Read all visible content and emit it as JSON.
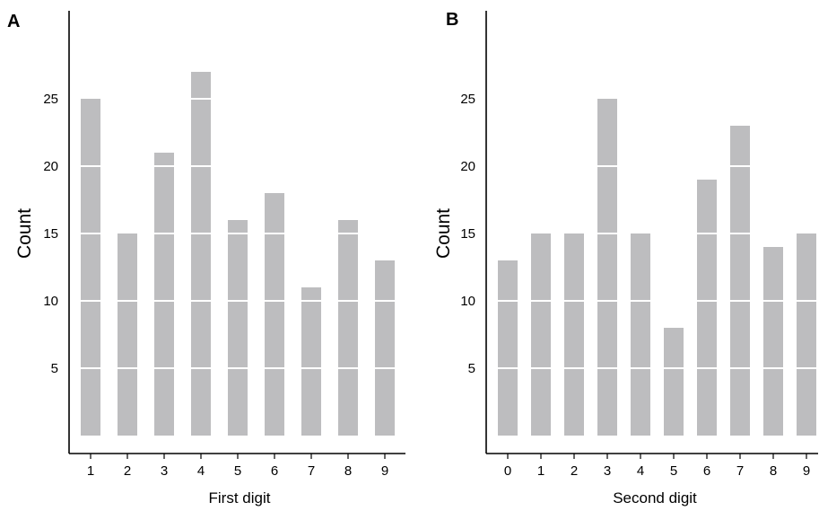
{
  "chart_data": [
    {
      "panel_label": "A",
      "type": "bar",
      "categories": [
        "1",
        "2",
        "3",
        "4",
        "5",
        "6",
        "7",
        "8",
        "9"
      ],
      "values": [
        25,
        15,
        21,
        27,
        16,
        18,
        11,
        16,
        13
      ],
      "xlabel": "First digit",
      "ylabel": "Count",
      "yticks": [
        5,
        10,
        15,
        20,
        25
      ],
      "ylim": [
        0,
        30
      ],
      "bar_color": "#bdbdbf",
      "band_step": 5
    },
    {
      "panel_label": "B",
      "type": "bar",
      "categories": [
        "0",
        "1",
        "2",
        "3",
        "4",
        "5",
        "6",
        "7",
        "8",
        "9"
      ],
      "values": [
        13,
        15,
        15,
        25,
        15,
        8,
        19,
        23,
        14,
        15
      ],
      "xlabel": "Second digit",
      "ylabel": "Count",
      "yticks": [
        5,
        10,
        15,
        20,
        25
      ],
      "ylim": [
        0,
        30
      ],
      "bar_color": "#bdbdbf",
      "band_step": 5
    }
  ]
}
